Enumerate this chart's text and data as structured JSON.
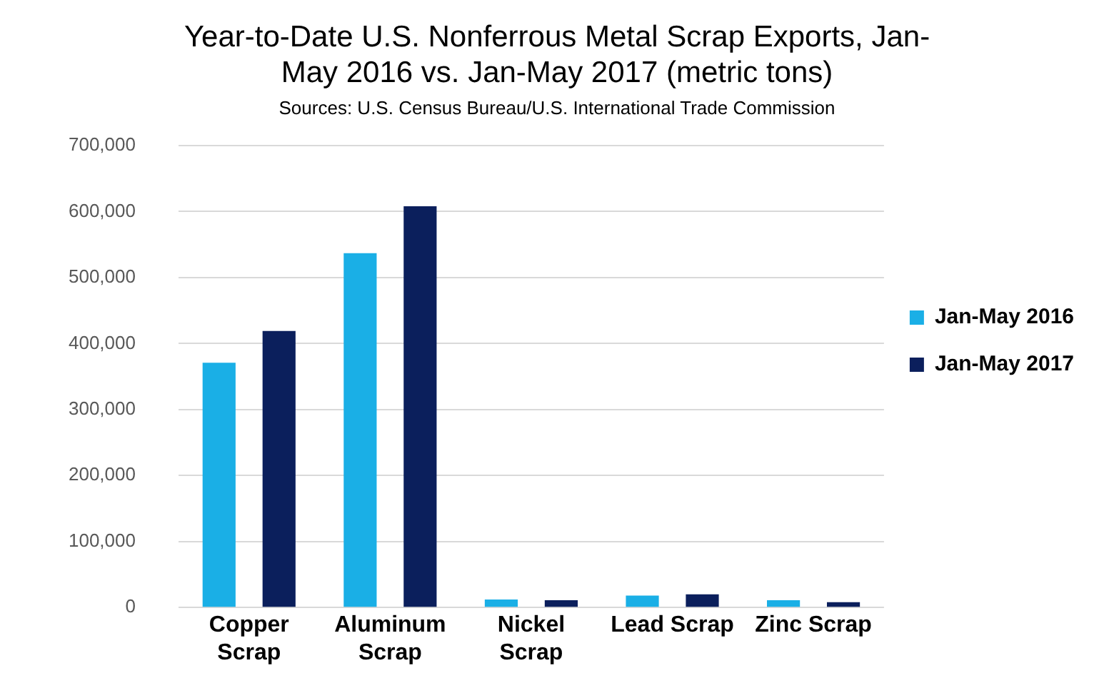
{
  "chart_data": {
    "type": "bar",
    "title": [
      "Year-to-Date U.S. Nonferrous Metal Scrap Exports, Jan-",
      "May 2016 vs. Jan-May 2017 (metric tons)"
    ],
    "subtitle": "Sources: U.S. Census Bureau/U.S. International Trade Commission",
    "categories": [
      "Copper Scrap",
      "Aluminum Scrap",
      "Nickel Scrap",
      "Lead Scrap",
      "Zinc Scrap"
    ],
    "series": [
      {
        "name": "Jan-May 2016",
        "color": "#1aafe6",
        "values": [
          371000,
          537000,
          12000,
          18000,
          11000
        ]
      },
      {
        "name": "Jan-May 2017",
        "color": "#0b1f5c",
        "values": [
          419000,
          608000,
          11000,
          20000,
          8000
        ]
      }
    ],
    "ylim": [
      0,
      700000
    ],
    "yticks": [
      0,
      {
        "value": 100000,
        "label": "100,000"
      },
      {
        "value": 200000,
        "label": "200,000"
      },
      {
        "value": 300000,
        "label": "300,000"
      },
      {
        "value": 400000,
        "label": "400,000"
      },
      {
        "value": 500000,
        "label": "500,000"
      },
      {
        "value": 600000,
        "label": "600,000"
      },
      {
        "value": 700000,
        "label": "700,000"
      }
    ],
    "grid": "y",
    "legend": "right"
  }
}
